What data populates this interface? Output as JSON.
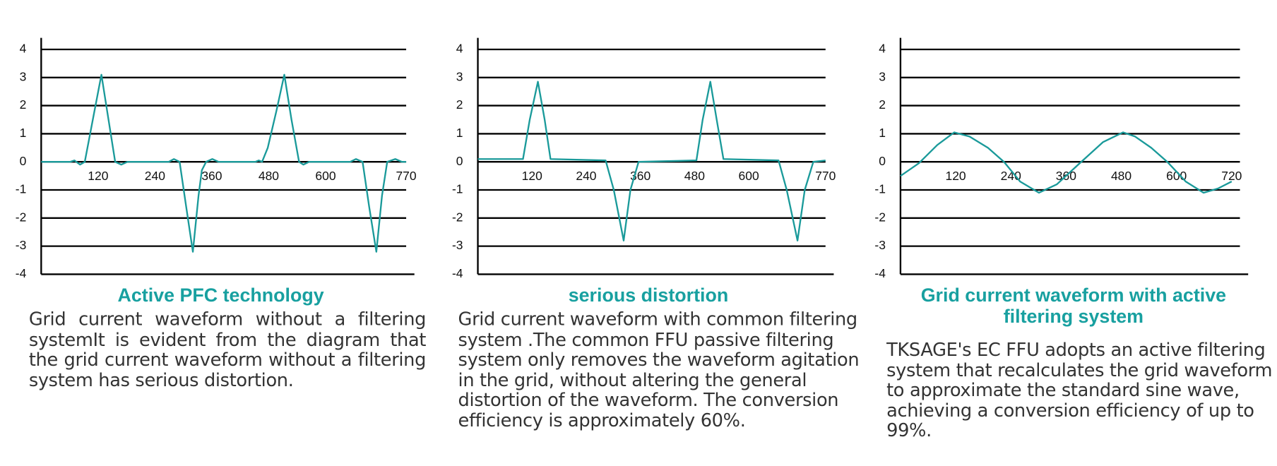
{
  "chart_data": [
    {
      "type": "line",
      "title": "Active PFC technology",
      "description": "Grid current waveform without a filtering systemIt is evident from the diagram that the grid current waveform without a filtering system has serious distortion.",
      "x": [
        0,
        61,
        70,
        82,
        92,
        110,
        127,
        142,
        156,
        169,
        182,
        269,
        280,
        292,
        306,
        320,
        332,
        339,
        348,
        361,
        374,
        452,
        459,
        466,
        478,
        496,
        513,
        528,
        544,
        553,
        565,
        652,
        664,
        678,
        692,
        707,
        719,
        730,
        747,
        761,
        770
      ],
      "series": [
        {
          "color": "#1a9a9a",
          "values": [
            0,
            0,
            0.05,
            -0.1,
            0,
            1.6,
            3.1,
            1.5,
            0,
            -0.1,
            0,
            0,
            0.1,
            0,
            -1.6,
            -3.2,
            -1.2,
            -0.3,
            0,
            0.1,
            0,
            0,
            0.05,
            0,
            0.5,
            1.8,
            3.1,
            1.5,
            0,
            -0.1,
            0,
            0,
            0.1,
            0,
            -1.6,
            -3.2,
            -1.2,
            0,
            0.1,
            0,
            0
          ]
        }
      ],
      "xlim": [
        0,
        770
      ],
      "xticks": [
        120,
        240,
        360,
        480,
        600,
        770
      ],
      "ylim": [
        -4,
        4
      ],
      "yticks": [
        -4,
        -3,
        -2,
        -1,
        0,
        1,
        2,
        3,
        4
      ],
      "grid": true
    },
    {
      "type": "line",
      "title": "serious distortion",
      "description": "Grid current waveform with common filtering system .The common FFU passive filtering system only removes the waveform agitation in the grid, without altering the general distortion of the waveform. The conversion efficiency is approximately 60%.",
      "x": [
        0,
        100,
        115,
        133,
        148,
        161,
        283,
        301,
        323,
        338,
        356,
        484,
        498,
        515,
        529,
        544,
        666,
        684,
        708,
        724,
        743,
        770
      ],
      "series": [
        {
          "color": "#1a9a9a",
          "values": [
            0.1,
            0.1,
            1.5,
            2.85,
            1.5,
            0.1,
            0.05,
            -1,
            -2.8,
            -1,
            0,
            0.05,
            1.5,
            2.85,
            1.5,
            0.1,
            0.05,
            -1,
            -2.8,
            -1,
            0,
            0.05
          ]
        }
      ],
      "xlim": [
        0,
        770
      ],
      "xticks": [
        120,
        240,
        360,
        480,
        600,
        770
      ],
      "ylim": [
        -4,
        4
      ],
      "yticks": [
        -4,
        -3,
        -2,
        -1,
        0,
        1,
        2,
        3,
        4
      ],
      "grid": true
    },
    {
      "type": "line",
      "title": "Grid current waveform with active filtering system",
      "description": "TKSAGE's EC FFU adopts an active filtering system that recalculates the grid waveform to approximate the standard sine wave, achieving a conversion efficiency of up to 99%.",
      "x": [
        0,
        40,
        80,
        117,
        150,
        190,
        225,
        260,
        301,
        340,
        393,
        440,
        484,
        510,
        545,
        580,
        620,
        659,
        690,
        720
      ],
      "series": [
        {
          "color": "#1a9a9a",
          "values": [
            -0.5,
            -0.05,
            0.6,
            1.05,
            0.9,
            0.5,
            0,
            -0.7,
            -1.1,
            -0.8,
            0,
            0.7,
            1.05,
            0.9,
            0.5,
            0,
            -0.7,
            -1.1,
            -0.95,
            -0.7
          ]
        }
      ],
      "xlim": [
        0,
        720
      ],
      "xticks": [
        120,
        240,
        360,
        480,
        600,
        720
      ],
      "ylim": [
        -4,
        4
      ],
      "yticks": [
        -4,
        -3,
        -2,
        -1,
        0,
        1,
        2,
        3,
        4
      ],
      "grid": true
    }
  ]
}
